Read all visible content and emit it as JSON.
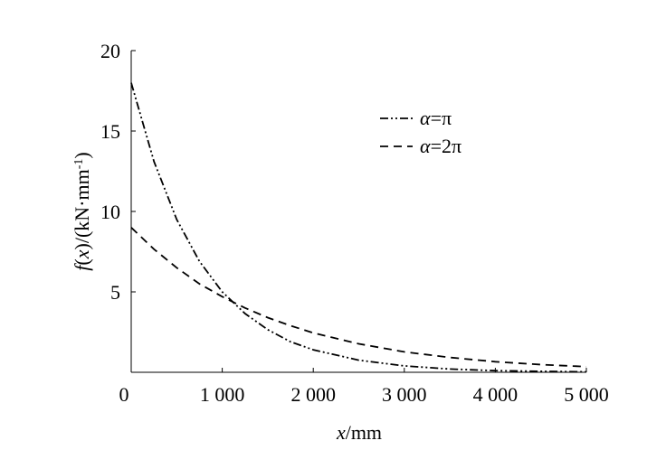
{
  "chart_data": {
    "type": "line",
    "xlabel": "x/mm",
    "ylabel": "f(x)/(kN·mm⁻¹)",
    "xlim": [
      0,
      5000
    ],
    "ylim": [
      0,
      20
    ],
    "x_ticks": [
      "0",
      "1 000",
      "2 000",
      "3 000",
      "4 000",
      "5 000"
    ],
    "y_ticks": [
      "5",
      "10",
      "15",
      "20"
    ],
    "grid": false,
    "legend_position": "top-right",
    "x": [
      0,
      250,
      500,
      750,
      1000,
      1250,
      1500,
      1750,
      2000,
      2500,
      3000,
      3500,
      4000,
      4500,
      5000
    ],
    "series": [
      {
        "name": "α=π",
        "dash": "dash-dot-dot",
        "values": [
          18.0,
          13.1,
          9.5,
          6.9,
          5.0,
          3.65,
          2.65,
          1.9,
          1.4,
          0.75,
          0.4,
          0.2,
          0.1,
          0.06,
          0.03
        ]
      },
      {
        "name": "α=2π",
        "dash": "dashed",
        "values": [
          9.0,
          7.65,
          6.5,
          5.5,
          4.7,
          4.0,
          3.4,
          2.9,
          2.45,
          1.77,
          1.27,
          0.92,
          0.66,
          0.48,
          0.35
        ]
      }
    ]
  }
}
